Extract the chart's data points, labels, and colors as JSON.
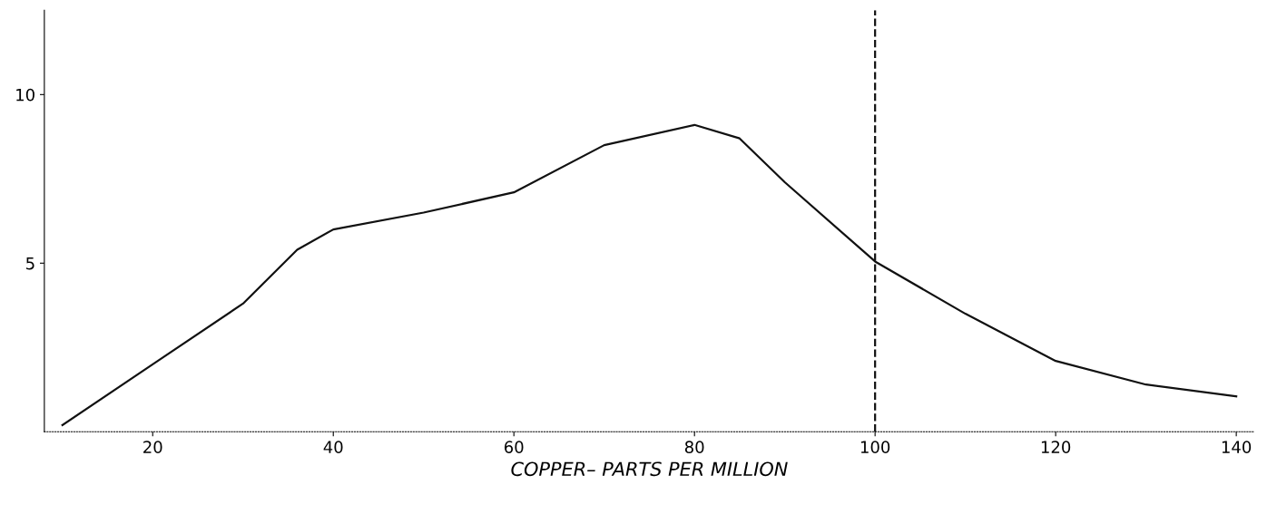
{
  "chart_data": {
    "type": "line",
    "xlabel": "COPPER– PARTS PER MILLION",
    "x": [
      10,
      20,
      30,
      36,
      40,
      50,
      60,
      70,
      80,
      85,
      90,
      100,
      110,
      120,
      130,
      140
    ],
    "series": [
      {
        "color": "#111111",
        "values": [
          0.2,
          2.0,
          3.8,
          5.4,
          6.0,
          6.5,
          7.1,
          8.5,
          9.1,
          8.7,
          7.4,
          5.05,
          3.5,
          2.1,
          1.4,
          1.05
        ]
      }
    ],
    "xlim": [
      8,
      142
    ],
    "xticks": [
      20,
      40,
      60,
      80,
      100,
      120,
      140
    ],
    "ylim": [
      0,
      12.5
    ],
    "yticks": [
      5,
      10
    ],
    "ref_lines": [
      {
        "axis": "x",
        "value": 100,
        "line_style": "dashed",
        "color": "#111111"
      }
    ],
    "grid": false,
    "marker": "none",
    "line_style": "solid"
  }
}
